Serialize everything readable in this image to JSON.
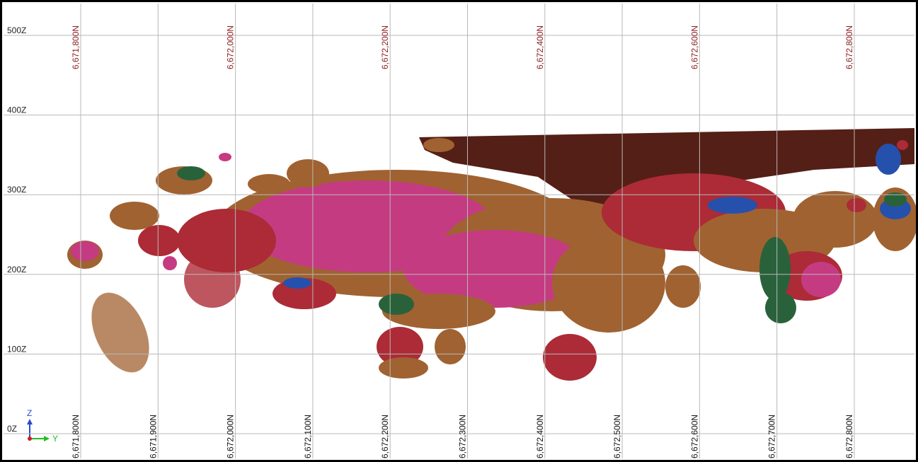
{
  "view": {
    "top_labels": [
      "6,671,800N",
      "6,672,000N",
      "6,672,200N",
      "6,672,400N",
      "6,672,600N",
      "6,672,800N"
    ],
    "bottom_labels": [
      "6,671,800N",
      "6,671,900N",
      "6,672,000N",
      "6,672,100N",
      "6,672,200N",
      "6,672,300N",
      "6,672,400N",
      "6,672,500N",
      "6,672,600N",
      "6,672,700N",
      "6,672,800N"
    ],
    "elevation_labels": [
      "500Z",
      "400Z",
      "300Z",
      "200Z",
      "100Z",
      "0Z"
    ],
    "axis_triad": {
      "z": "Z",
      "y": "Y"
    }
  }
}
